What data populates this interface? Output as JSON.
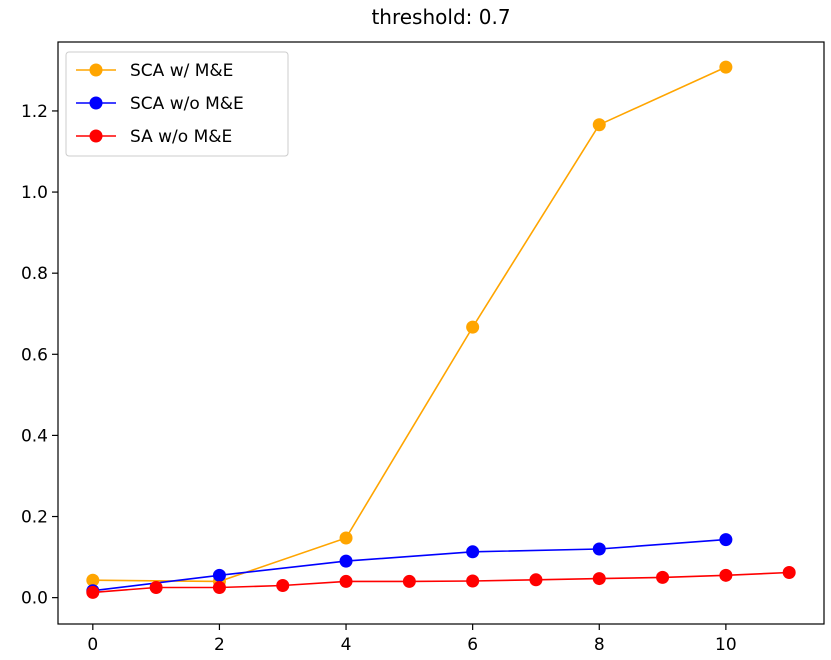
{
  "chart_data": {
    "type": "line",
    "title": "threshold: 0.7",
    "xlabel": "",
    "ylabel": "",
    "xlim": [
      -0.55,
      11.55
    ],
    "ylim": [
      -0.065,
      1.37
    ],
    "xticks": [
      0,
      2,
      4,
      6,
      8,
      10
    ],
    "xtick_labels": [
      "0",
      "2",
      "4",
      "6",
      "8",
      "10"
    ],
    "yticks": [
      0.0,
      0.2,
      0.4,
      0.6,
      0.8,
      1.0,
      1.2
    ],
    "ytick_labels": [
      "0.0",
      "0.2",
      "0.4",
      "0.6",
      "0.8",
      "1.0",
      "1.2"
    ],
    "grid": false,
    "legend_position": "top-left",
    "series": [
      {
        "name": "SCA w/ M&E",
        "color": "#ffa500",
        "x": [
          0,
          2,
          4,
          6,
          8,
          10
        ],
        "y": [
          0.043,
          0.04,
          0.147,
          0.667,
          1.166,
          1.308
        ]
      },
      {
        "name": "SCA w/o M&E",
        "color": "#0000ff",
        "x": [
          0,
          2,
          4,
          6,
          8,
          10
        ],
        "y": [
          0.017,
          0.055,
          0.09,
          0.113,
          0.12,
          0.143
        ]
      },
      {
        "name": "SA w/o M&E",
        "color": "#ff0000",
        "x": [
          0,
          1,
          2,
          3,
          4,
          5,
          6,
          7,
          8,
          9,
          10,
          11
        ],
        "y": [
          0.013,
          0.025,
          0.025,
          0.03,
          0.04,
          0.04,
          0.041,
          0.044,
          0.047,
          0.05,
          0.055,
          0.062
        ]
      }
    ]
  }
}
